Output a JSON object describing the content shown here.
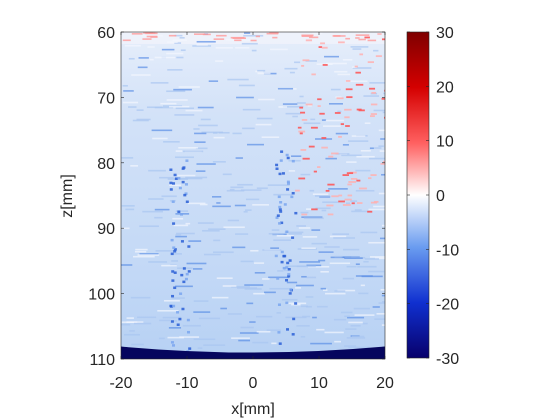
{
  "chart_data": {
    "type": "heatmap",
    "title": "",
    "xlabel": "x[mm]",
    "ylabel": "z[mm]",
    "xlim": [
      -20,
      20
    ],
    "ylim": [
      60,
      110
    ],
    "y_reversed": true,
    "xticks": [
      -20,
      -10,
      0,
      10,
      20
    ],
    "yticks": [
      60,
      70,
      80,
      90,
      100,
      110
    ],
    "colorbar": {
      "limits": [
        -30,
        30
      ],
      "ticks": [
        30,
        20,
        10,
        0,
        -10,
        -20,
        -30
      ],
      "colormap": "blue-white-red diverging"
    },
    "description_values": {
      "background_value": -5,
      "top_band_value": 0,
      "bottom_band_value": -30,
      "streak_columns_x": [
        -11,
        5
      ],
      "right_region_has_positive_values": true
    },
    "colors": {
      "colormap_low": "#08006b",
      "colormap_mid": "#ffffff",
      "colormap_high": "#7f0000",
      "background_field": "#c9ddf7",
      "bottom_band": "#06065e"
    }
  }
}
